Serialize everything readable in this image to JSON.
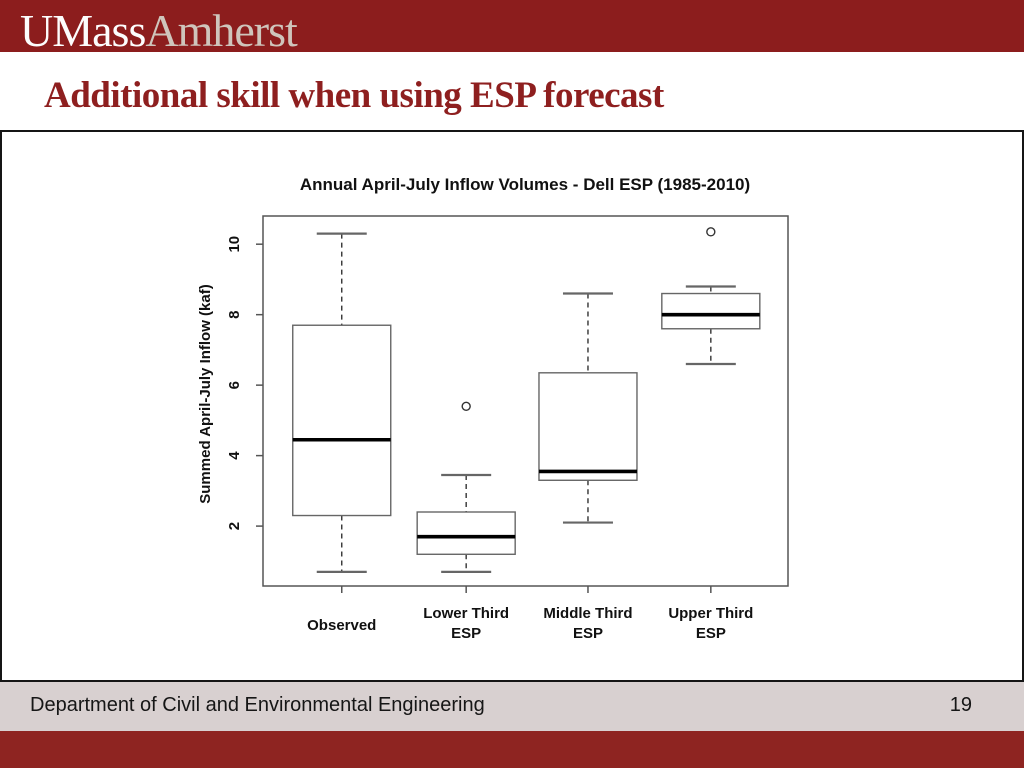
{
  "banner": {
    "logo_umass": "UMass",
    "logo_amherst": "Amherst"
  },
  "slide": {
    "title": "Additional skill when using ESP forecast"
  },
  "footer": {
    "department": "Department of Civil and Environmental Engineering",
    "page_number": "19"
  },
  "colors": {
    "banner_maroon": "#8c1d1d",
    "title_red": "#8e1f1f",
    "footer_red": "#8e2421",
    "footer_gray": "#d8d0d0"
  },
  "chart_data": {
    "type": "boxplot",
    "title": "Annual April-July Inflow Volumes - Dell ESP (1985-2010)",
    "ylabel": "Summed April-July Inflow (kaf)",
    "xlabel": "",
    "yticks": [
      2,
      4,
      6,
      8,
      10
    ],
    "ylim": [
      0.3,
      10.8
    ],
    "grid": false,
    "legend": "none",
    "categories": [
      "Observed",
      "Lower Third\nESP",
      "Middle Third\nESP",
      "Upper Third\nESP"
    ],
    "boxes": [
      {
        "category": "Observed",
        "whisker_low": 0.7,
        "q1": 2.3,
        "median": 4.45,
        "q3": 7.7,
        "whisker_high": 10.3,
        "outliers": []
      },
      {
        "category": "Lower Third ESP",
        "whisker_low": 0.7,
        "q1": 1.2,
        "median": 1.7,
        "q3": 2.4,
        "whisker_high": 3.45,
        "outliers": [
          5.4
        ]
      },
      {
        "category": "Middle Third ESP",
        "whisker_low": 2.1,
        "q1": 3.3,
        "median": 3.55,
        "q3": 6.35,
        "whisker_high": 8.6,
        "outliers": []
      },
      {
        "category": "Upper Third ESP",
        "whisker_low": 6.6,
        "q1": 7.6,
        "median": 8.0,
        "q3": 8.6,
        "whisker_high": 8.8,
        "outliers": [
          10.35
        ]
      }
    ]
  }
}
